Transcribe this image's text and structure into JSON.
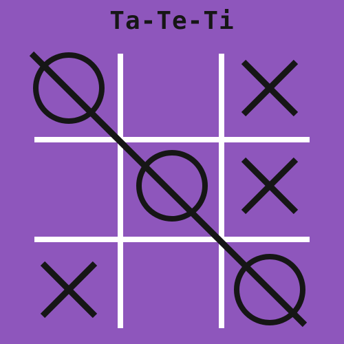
{
  "game": {
    "title": "Ta-Te-Ti",
    "board": [
      [
        "O",
        "",
        "X"
      ],
      [
        "",
        "O",
        "X"
      ],
      [
        "X",
        "",
        "O"
      ]
    ],
    "winning_line": "diagonal-top-left-to-bottom-right",
    "winner": "O"
  },
  "colors": {
    "background": "#8e56bc",
    "grid": "#ffffff",
    "marks": "#161616"
  }
}
